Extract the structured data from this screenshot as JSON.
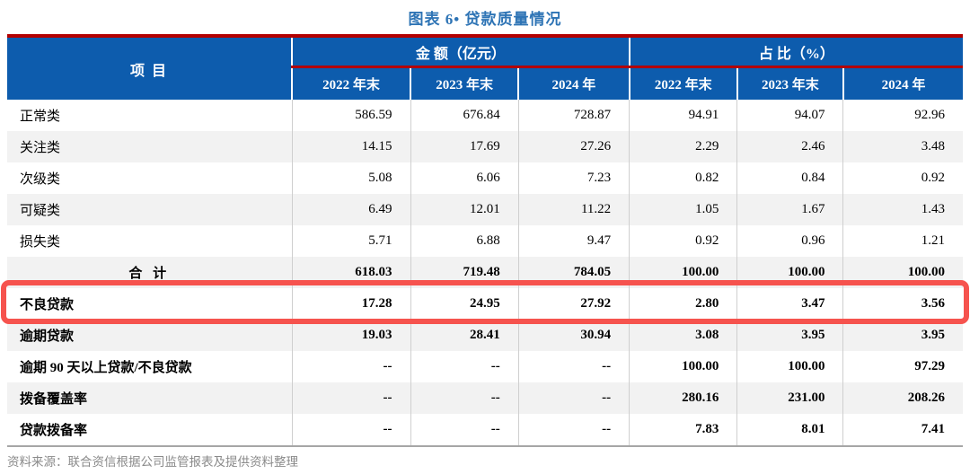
{
  "title": "图表 6• 贷款质量情况",
  "table": {
    "item_header": "项  目",
    "group_headers": [
      {
        "label": "金  额（亿元）"
      },
      {
        "label": "占  比（%）"
      }
    ],
    "sub_headers": [
      "2022 年末",
      "2023 年末",
      "2024 年",
      "2022 年末",
      "2023 年末",
      "2024 年"
    ],
    "rows": [
      {
        "label": "正常类",
        "values": [
          "586.59",
          "676.84",
          "728.87",
          "94.91",
          "94.07",
          "92.96"
        ],
        "bold": false,
        "center_label": false,
        "highlight": false
      },
      {
        "label": "关注类",
        "values": [
          "14.15",
          "17.69",
          "27.26",
          "2.29",
          "2.46",
          "3.48"
        ],
        "bold": false,
        "center_label": false,
        "highlight": false
      },
      {
        "label": "次级类",
        "values": [
          "5.08",
          "6.06",
          "7.23",
          "0.82",
          "0.84",
          "0.92"
        ],
        "bold": false,
        "center_label": false,
        "highlight": false
      },
      {
        "label": "可疑类",
        "values": [
          "6.49",
          "12.01",
          "11.22",
          "1.05",
          "1.67",
          "1.43"
        ],
        "bold": false,
        "center_label": false,
        "highlight": false
      },
      {
        "label": "损失类",
        "values": [
          "5.71",
          "6.88",
          "9.47",
          "0.92",
          "0.96",
          "1.21"
        ],
        "bold": false,
        "center_label": false,
        "highlight": false
      },
      {
        "label": "合  计",
        "values": [
          "618.03",
          "719.48",
          "784.05",
          "100.00",
          "100.00",
          "100.00"
        ],
        "bold": true,
        "center_label": true,
        "highlight": false
      },
      {
        "label": "不良贷款",
        "values": [
          "17.28",
          "24.95",
          "27.92",
          "2.80",
          "3.47",
          "3.56"
        ],
        "bold": true,
        "center_label": false,
        "highlight": true
      },
      {
        "label": "逾期贷款",
        "values": [
          "19.03",
          "28.41",
          "30.94",
          "3.08",
          "3.95",
          "3.95"
        ],
        "bold": true,
        "center_label": false,
        "highlight": false
      },
      {
        "label": "逾期 90 天以上贷款/不良贷款",
        "values": [
          "--",
          "--",
          "--",
          "100.00",
          "100.00",
          "97.29"
        ],
        "bold": true,
        "center_label": false,
        "highlight": false
      },
      {
        "label": "拨备覆盖率",
        "values": [
          "--",
          "--",
          "--",
          "280.16",
          "231.00",
          "208.26"
        ],
        "bold": true,
        "center_label": false,
        "highlight": false
      },
      {
        "label": "贷款拨备率",
        "values": [
          "--",
          "--",
          "--",
          "7.83",
          "8.01",
          "7.41"
        ],
        "bold": true,
        "center_label": false,
        "highlight": false
      }
    ]
  },
  "source_note": "资料来源：联合资信根据公司监管报表及提供资料整理",
  "colors": {
    "header_blue": "#0d5cad",
    "rule_red": "#b30000",
    "highlight_red": "#f6534e",
    "title_blue": "#2e74b5",
    "zebra_gray": "#f2f2f2"
  }
}
